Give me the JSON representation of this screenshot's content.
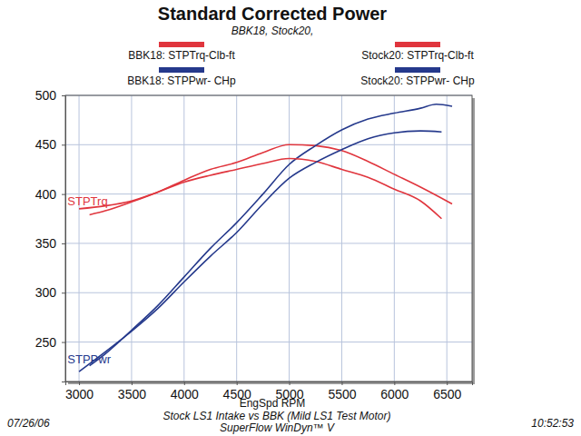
{
  "chart_data": {
    "type": "line",
    "title": "Standard Corrected Power",
    "subtitle": "BBK18, Stock20,",
    "x_label": "EngSpd RPM",
    "footer": [
      "Stock LS1 Intake vs BBK (Mild LS1 Test Motor)",
      "SuperFlow WinDyn™ V"
    ],
    "date": "07/26/06",
    "time": "10:52:53",
    "xlim": [
      2870,
      6740
    ],
    "ylim": [
      210,
      500
    ],
    "xticks": [
      3000,
      3500,
      4000,
      4500,
      5000,
      5500,
      6000,
      6500
    ],
    "yticks": [
      250,
      300,
      350,
      400,
      450,
      500
    ],
    "grid": true,
    "legend": "top",
    "annotations": [
      {
        "text": "STPTrq",
        "x": 2890,
        "y": 392,
        "color": "#e0353d"
      },
      {
        "text": "STPPwr",
        "x": 2890,
        "y": 232,
        "color": "#25398c"
      }
    ],
    "series": [
      {
        "name": "BBK18: STPTrq-Clb-ft",
        "color": "#e0353d",
        "x": [
          3100,
          3250,
          3500,
          3750,
          4000,
          4250,
          4500,
          4750,
          5000,
          5250,
          5500,
          5750,
          6000,
          6250,
          6550
        ],
        "values": [
          379,
          383,
          392,
          402,
          414,
          425,
          432,
          442,
          450,
          449,
          444,
          433,
          420,
          407,
          390
        ]
      },
      {
        "name": "BBK18: STPPwr- CHp",
        "color": "#25398c",
        "x": [
          3100,
          3250,
          3500,
          3750,
          4000,
          4250,
          4500,
          4750,
          5000,
          5250,
          5500,
          5750,
          6000,
          6250,
          6400,
          6550
        ],
        "values": [
          226,
          238,
          262,
          287,
          316,
          345,
          371,
          400,
          430,
          449,
          465,
          476,
          482,
          487,
          491,
          489
        ]
      },
      {
        "name": "Stock20: STPTrq-Clb-ft",
        "color": "#e0353d",
        "x": [
          3000,
          3250,
          3500,
          3750,
          4000,
          4250,
          4500,
          4750,
          5000,
          5250,
          5500,
          5750,
          6000,
          6250,
          6450
        ],
        "values": [
          385,
          388,
          393,
          402,
          412,
          419,
          425,
          431,
          436,
          433,
          425,
          417,
          405,
          393,
          375
        ]
      },
      {
        "name": "Stock20: STPPwr- CHp",
        "color": "#25398c",
        "x": [
          3000,
          3250,
          3500,
          3750,
          4000,
          4250,
          4500,
          4750,
          5000,
          5250,
          5500,
          5750,
          6000,
          6250,
          6450
        ],
        "values": [
          220,
          240,
          261,
          284,
          311,
          337,
          361,
          390,
          416,
          432,
          445,
          456,
          462,
          464,
          463
        ]
      }
    ]
  }
}
